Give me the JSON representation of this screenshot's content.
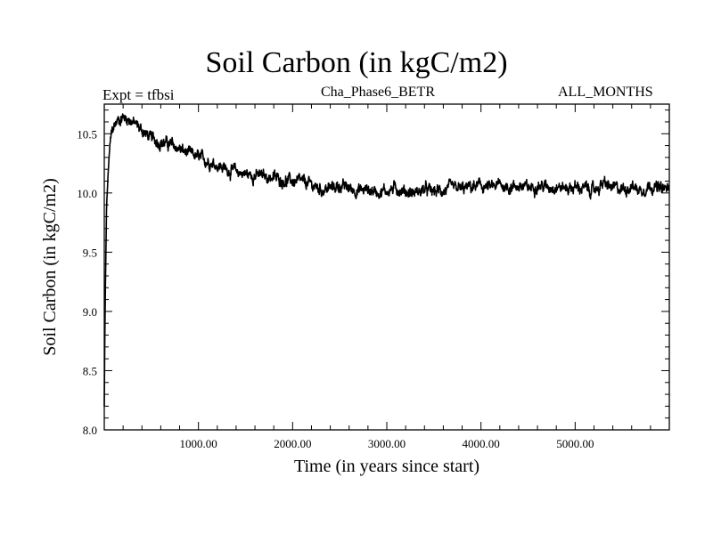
{
  "chart_data": {
    "type": "line",
    "title": "Soil Carbon (in kgC/m2)",
    "subtitle_left": "Expt = tfbsi",
    "subtitle_center": "Cha_Phase6_BETR",
    "subtitle_right": "ALL_MONTHS",
    "xlabel": "Time (in years since start)",
    "ylabel": "Soil Carbon (in kgC/m2)",
    "xlim": [
      0,
      6000
    ],
    "ylim": [
      8.0,
      10.75
    ],
    "xticks": [
      1000,
      2000,
      3000,
      4000,
      5000
    ],
    "xtick_labels": [
      "1000.00",
      "2000.00",
      "3000.00",
      "4000.00",
      "5000.00"
    ],
    "yticks": [
      8.0,
      8.5,
      9.0,
      9.5,
      10.0,
      10.5
    ],
    "ytick_labels": [
      "8.0",
      "8.5",
      "9.0",
      "9.5",
      "10.0",
      "10.5"
    ],
    "grid": false,
    "series": [
      {
        "name": "Soil Carbon",
        "x": [
          0,
          10,
          25,
          50,
          75,
          100,
          150,
          200,
          250,
          300,
          400,
          500,
          600,
          700,
          800,
          900,
          1000,
          1100,
          1200,
          1300,
          1400,
          1500,
          1600,
          1700,
          1800,
          1900,
          2000,
          2100,
          2200,
          2300,
          2400,
          2500,
          2600,
          2700,
          2800,
          2900,
          3000,
          3100,
          3200,
          3300,
          3400,
          3500,
          3600,
          3700,
          3800,
          3900,
          4000,
          4100,
          4200,
          4300,
          4400,
          4500,
          4600,
          4700,
          4800,
          4900,
          5000,
          5100,
          5200,
          5300,
          5400,
          5500,
          5600,
          5700,
          5800,
          5900,
          6000
        ],
        "values": [
          8.2,
          9.1,
          9.9,
          10.3,
          10.5,
          10.56,
          10.62,
          10.64,
          10.63,
          10.6,
          10.53,
          10.46,
          10.43,
          10.41,
          10.37,
          10.33,
          10.3,
          10.27,
          10.24,
          10.2,
          10.18,
          10.16,
          10.15,
          10.14,
          10.13,
          10.11,
          10.1,
          10.09,
          10.07,
          10.03,
          10.04,
          10.06,
          10.04,
          10.02,
          10.03,
          10.01,
          10.02,
          10.04,
          10.01,
          10.0,
          10.03,
          10.01,
          10.02,
          10.04,
          10.03,
          10.05,
          10.06,
          10.04,
          10.07,
          10.05,
          10.06,
          10.04,
          10.07,
          10.05,
          10.06,
          10.04,
          10.05,
          10.04,
          10.02,
          10.08,
          10.04,
          10.03,
          10.06,
          10.02,
          10.07,
          10.03,
          10.04
        ]
      }
    ]
  }
}
